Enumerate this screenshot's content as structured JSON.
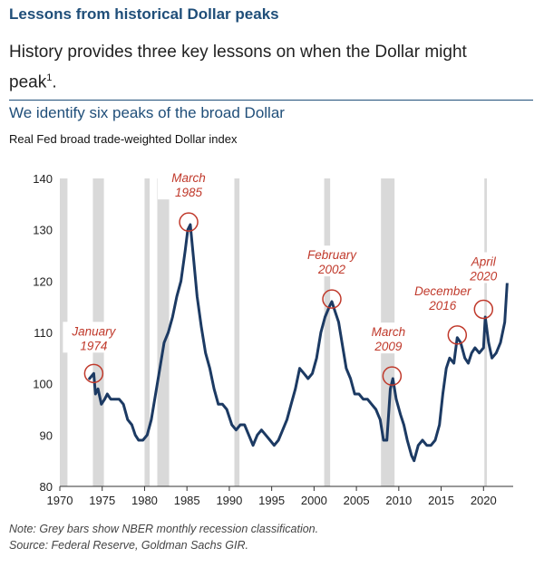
{
  "header": {
    "title": "Lessons from historical Dollar peaks",
    "subtitle": "History provides three key lessons on when the Dollar might peak",
    "subtitle_sup": "1",
    "subtitle_end": "."
  },
  "chart_data": {
    "type": "line",
    "title": "We identify six peaks of the broad Dollar",
    "subtitle": "Real Fed broad trade-weighted Dollar index",
    "xlabel": "",
    "ylabel": "",
    "xlim": [
      1970,
      2023.5
    ],
    "ylim": [
      80,
      140
    ],
    "xticks": [
      1970,
      1975,
      1980,
      1985,
      1990,
      1995,
      2000,
      2005,
      2010,
      2015,
      2020
    ],
    "yticks": [
      80,
      90,
      100,
      110,
      120,
      130,
      140
    ],
    "series": [
      {
        "name": "Real Fed broad trade-weighted Dollar index",
        "color": "#1c3a63",
        "x": [
          1973.5,
          1974.0,
          1974.2,
          1974.5,
          1974.9,
          1975.3,
          1975.6,
          1976.0,
          1976.5,
          1977.0,
          1977.5,
          1978.0,
          1978.5,
          1978.9,
          1979.3,
          1979.8,
          1980.3,
          1980.8,
          1981.3,
          1981.8,
          1982.3,
          1982.8,
          1983.3,
          1983.8,
          1984.3,
          1984.8,
          1985.1,
          1985.4,
          1985.8,
          1986.2,
          1986.7,
          1987.2,
          1987.7,
          1988.2,
          1988.7,
          1989.2,
          1989.7,
          1990.3,
          1990.8,
          1991.3,
          1991.8,
          1992.3,
          1992.8,
          1993.3,
          1993.8,
          1994.3,
          1994.8,
          1995.3,
          1995.8,
          1996.3,
          1996.8,
          1997.3,
          1997.8,
          1998.3,
          1998.8,
          1999.3,
          1999.8,
          2000.3,
          2000.8,
          2001.3,
          2001.8,
          2002.1,
          2002.5,
          2002.9,
          2003.3,
          2003.8,
          2004.3,
          2004.8,
          2005.3,
          2005.8,
          2006.3,
          2006.8,
          2007.3,
          2007.8,
          2008.2,
          2008.6,
          2009.0,
          2009.3,
          2009.7,
          2010.2,
          2010.6,
          2011.0,
          2011.5,
          2011.8,
          2012.3,
          2012.8,
          2013.3,
          2013.8,
          2014.3,
          2014.8,
          2015.2,
          2015.6,
          2016.0,
          2016.5,
          2016.9,
          2017.3,
          2017.8,
          2018.2,
          2018.6,
          2019.0,
          2019.5,
          2020.0,
          2020.2,
          2020.6,
          2021.0,
          2021.5,
          2022.0,
          2022.5,
          2022.8
        ],
        "values": [
          101,
          102,
          98,
          99,
          96,
          97,
          98,
          97,
          97,
          97,
          96,
          93,
          92,
          90,
          89,
          89,
          90,
          93,
          98,
          103,
          108,
          110,
          113,
          117,
          120,
          126,
          130,
          131,
          124,
          117,
          111,
          106,
          103,
          99,
          96,
          96,
          95,
          92,
          91,
          92,
          92,
          90,
          88,
          90,
          91,
          90,
          89,
          88,
          89,
          91,
          93,
          96,
          99,
          103,
          102,
          101,
          102,
          105,
          110,
          113,
          115,
          116,
          114,
          112,
          108,
          103,
          101,
          98,
          98,
          97,
          97,
          96,
          95,
          93,
          89,
          89,
          99,
          101,
          97,
          94,
          92,
          89,
          86,
          85,
          88,
          89,
          88,
          88,
          89,
          92,
          98,
          103,
          105,
          104,
          109,
          108,
          105,
          104,
          106,
          107,
          106,
          107,
          113,
          108,
          105,
          106,
          108,
          112,
          120
        ]
      }
    ],
    "recessions": [
      [
        1970.0,
        1970.9
      ],
      [
        1973.9,
        1975.2
      ],
      [
        1980.0,
        1980.6
      ],
      [
        1981.5,
        1982.9
      ],
      [
        1990.6,
        1991.2
      ],
      [
        2001.2,
        2001.9
      ],
      [
        2007.9,
        2009.5
      ],
      [
        2020.1,
        2020.4
      ]
    ],
    "peaks": [
      {
        "label_line1": "January",
        "label_line2": "1974",
        "x": 1974.0,
        "y": 102
      },
      {
        "label_line1": "March",
        "label_line2": "1985",
        "x": 1985.2,
        "y": 131.5
      },
      {
        "label_line1": "February",
        "label_line2": "2002",
        "x": 2002.1,
        "y": 116.5
      },
      {
        "label_line1": "March",
        "label_line2": "2009",
        "x": 2009.2,
        "y": 101.5
      },
      {
        "label_line1": "December",
        "label_line2": "2016",
        "x": 2016.9,
        "y": 109.5
      },
      {
        "label_line1": "April",
        "label_line2": "2020",
        "x": 2020.0,
        "y": 114.5
      }
    ]
  },
  "footer": {
    "note": "Note: Grey bars show NBER monthly recession classification.",
    "source": "Source: Federal Reserve, Goldman Sachs GIR."
  },
  "colors": {
    "line": "#1c3a63",
    "recession": "#d9d9d9",
    "peak_marker": "#c0392b",
    "title": "#1f4e79"
  }
}
